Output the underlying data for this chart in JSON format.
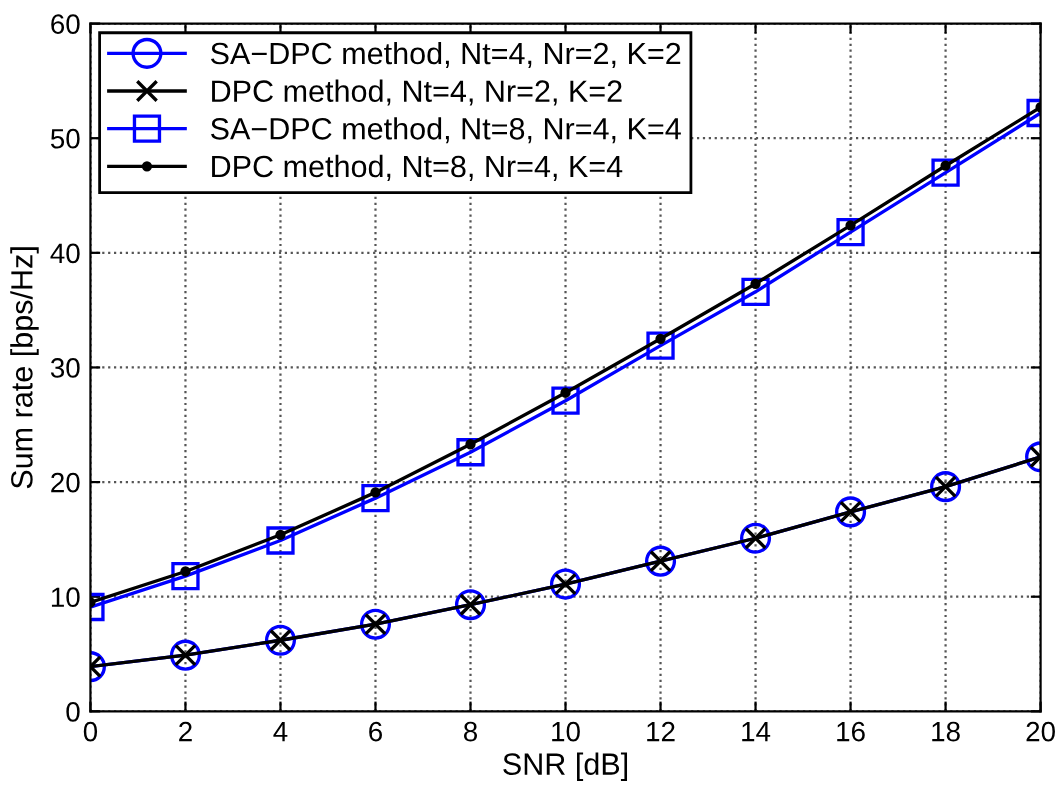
{
  "chart_data": {
    "type": "line",
    "xlabel": "SNR [dB]",
    "ylabel": "Sum rate [bps/Hz]",
    "x": [
      0,
      2,
      4,
      6,
      8,
      10,
      12,
      14,
      16,
      18,
      20
    ],
    "series": [
      {
        "name": "SA−DPC method, Nt=4, Nr=2, K=2",
        "color": "#0000ff",
        "marker": "circle",
        "values": [
          3.9,
          4.9,
          6.2,
          7.6,
          9.3,
          11.1,
          13.1,
          15.1,
          17.4,
          19.6,
          22.2
        ]
      },
      {
        "name": "DPC method, Nt=4, Nr=2, K=2",
        "color": "#000000",
        "marker": "cross",
        "values": [
          3.9,
          4.9,
          6.2,
          7.6,
          9.3,
          11.1,
          13.1,
          15.1,
          17.4,
          19.6,
          22.2
        ]
      },
      {
        "name": "SA−DPC method, Nt=8, Nr=4, K=4",
        "color": "#0000ff",
        "marker": "square",
        "values": [
          9.1,
          11.8,
          14.9,
          18.6,
          22.6,
          27.1,
          31.9,
          36.6,
          41.8,
          47.0,
          52.2
        ]
      },
      {
        "name": "DPC method, Nt=8, Nr=4, K=4",
        "color": "#000000",
        "marker": "point",
        "values": [
          9.5,
          12.2,
          15.4,
          19.1,
          23.3,
          27.8,
          32.5,
          37.3,
          42.4,
          47.6,
          52.7
        ]
      }
    ],
    "xlim": [
      0,
      20
    ],
    "xticks": [
      0,
      2,
      4,
      6,
      8,
      10,
      12,
      14,
      16,
      18,
      20
    ],
    "ylim": [
      0,
      60
    ],
    "yticks": [
      0,
      10,
      20,
      30,
      40,
      50,
      60
    ],
    "grid": true,
    "legend": "top left",
    "line_style": "solid"
  }
}
